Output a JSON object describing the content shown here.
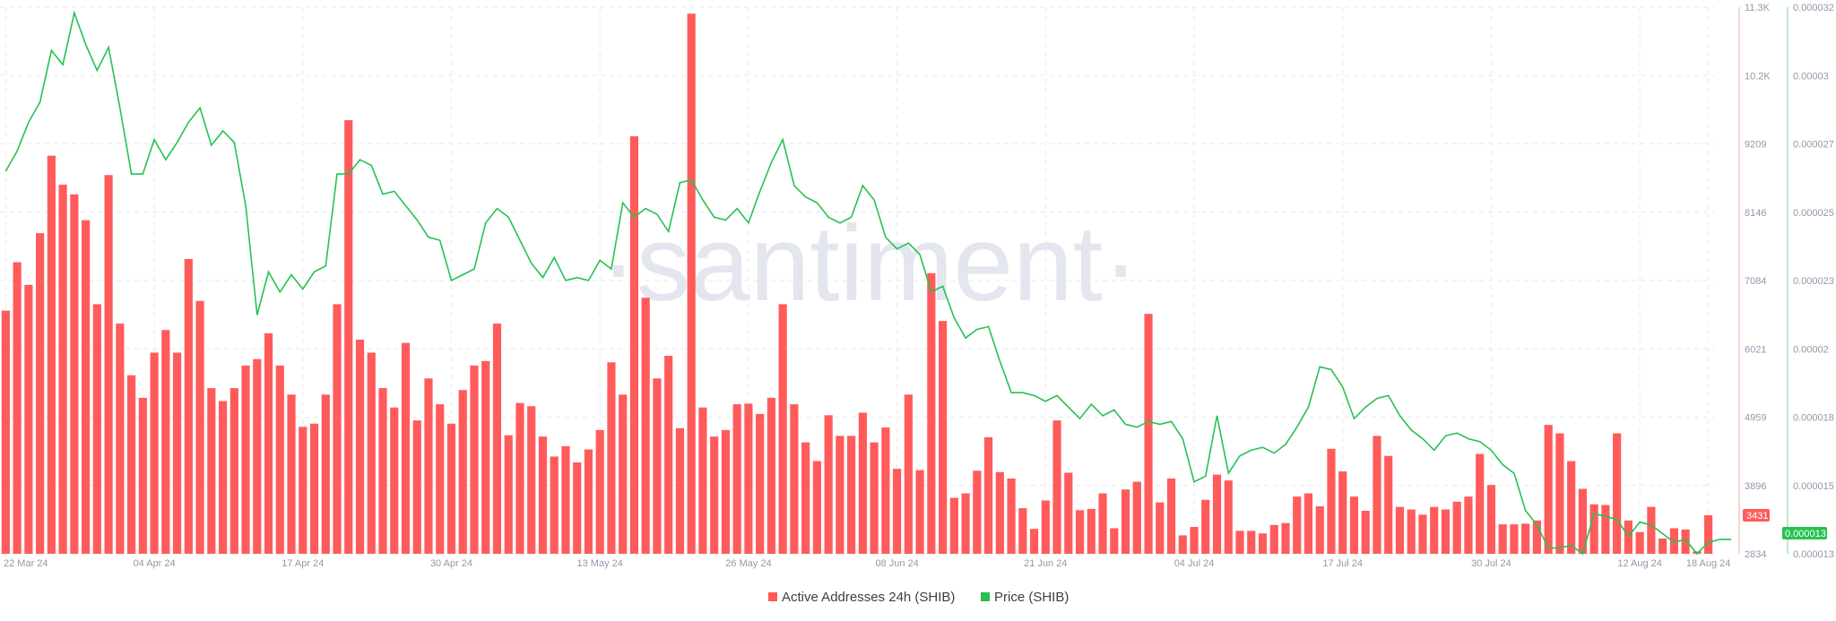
{
  "watermark": "·santiment·",
  "colors": {
    "bars": "#ff5b5b",
    "line": "#26c250",
    "grid": "#e6e9ef",
    "text": "#8f9aa8"
  },
  "chart_data": {
    "type": "bar",
    "x_tick_labels": [
      "22 Mar 24",
      "04 Apr 24",
      "17 Apr 24",
      "30 Apr 24",
      "13 May 24",
      "26 May 24",
      "08 Jun 24",
      "21 Jun 24",
      "04 Jul 24",
      "17 Jul 24",
      "30 Jul 24",
      "12 Aug 24",
      "18 Aug 24"
    ],
    "x_tick_index": [
      0,
      13,
      26,
      39,
      52,
      65,
      78,
      91,
      104,
      117,
      130,
      143,
      149
    ],
    "series": [
      {
        "name": "Active Addresses 24h (SHIB)",
        "axis": "left",
        "ylim": [
          2834,
          11300
        ],
        "values": [
          6600,
          7350,
          7000,
          7800,
          9000,
          8550,
          8400,
          8000,
          6700,
          8700,
          6400,
          5600,
          5250,
          5950,
          6300,
          5950,
          7400,
          6750,
          5400,
          5200,
          5400,
          5750,
          5850,
          6250,
          5750,
          5300,
          4800,
          4850,
          5300,
          6700,
          9550,
          6150,
          5950,
          5400,
          5100,
          6100,
          4900,
          5550,
          5150,
          4850,
          5370,
          5750,
          5820,
          6400,
          4670,
          5170,
          5120,
          4650,
          4340,
          4500,
          4250,
          4450,
          4750,
          5800,
          5300,
          9300,
          6800,
          5550,
          5900,
          4780,
          11200,
          5100,
          4650,
          4750,
          5150,
          5160,
          5000,
          5250,
          6700,
          5150,
          4560,
          4270,
          4980,
          4660,
          4660,
          5020,
          4560,
          4790,
          4150,
          5300,
          4130,
          7180,
          6440,
          3700,
          3770,
          4120,
          4640,
          4100,
          4000,
          3540,
          3220,
          3660,
          4900,
          4090,
          3510,
          3530,
          3770,
          3230,
          3830,
          3950,
          6550,
          3630,
          4000,
          3120,
          3250,
          3670,
          4060,
          3970,
          3190,
          3190,
          3150,
          3280,
          3310,
          3720,
          3770,
          3570,
          4460,
          4110,
          3720,
          3500,
          4660,
          4350,
          3560,
          3520,
          3440,
          3560,
          3520,
          3640,
          3720,
          4380,
          3900,
          3290,
          3290,
          3300,
          3350,
          4830,
          4700,
          4270,
          3840,
          3600,
          3590,
          4700,
          3350,
          3170,
          3560,
          3070,
          3230,
          3210,
          2870,
          3431
        ]
      },
      {
        "name": "Price (SHIB)",
        "axis": "right",
        "ylim": [
          1.3e-05,
          3.2e-05
        ],
        "values": [
          2.63e-05,
          2.7e-05,
          2.8e-05,
          2.87e-05,
          3.05e-05,
          3e-05,
          3.18e-05,
          3.07e-05,
          2.98e-05,
          3.06e-05,
          2.85e-05,
          2.62e-05,
          2.62e-05,
          2.74e-05,
          2.67e-05,
          2.73e-05,
          2.8e-05,
          2.85e-05,
          2.72e-05,
          2.77e-05,
          2.73e-05,
          2.51e-05,
          2.13e-05,
          2.28e-05,
          2.21e-05,
          2.27e-05,
          2.22e-05,
          2.28e-05,
          2.3e-05,
          2.62e-05,
          2.62e-05,
          2.67e-05,
          2.65e-05,
          2.55e-05,
          2.56e-05,
          2.51e-05,
          2.46e-05,
          2.4e-05,
          2.39e-05,
          2.25e-05,
          2.27e-05,
          2.29e-05,
          2.45e-05,
          2.5e-05,
          2.47e-05,
          2.39e-05,
          2.31e-05,
          2.26e-05,
          2.33e-05,
          2.25e-05,
          2.26e-05,
          2.25e-05,
          2.32e-05,
          2.29e-05,
          2.52e-05,
          2.47e-05,
          2.5e-05,
          2.48e-05,
          2.42e-05,
          2.59e-05,
          2.6e-05,
          2.53e-05,
          2.47e-05,
          2.46e-05,
          2.5e-05,
          2.45e-05,
          2.56e-05,
          2.66e-05,
          2.74e-05,
          2.58e-05,
          2.54e-05,
          2.52e-05,
          2.47e-05,
          2.45e-05,
          2.47e-05,
          2.58e-05,
          2.53e-05,
          2.4e-05,
          2.36e-05,
          2.38e-05,
          2.34e-05,
          2.21e-05,
          2.23e-05,
          2.12e-05,
          2.05e-05,
          2.08e-05,
          2.09e-05,
          1.97e-05,
          1.86e-05,
          1.86e-05,
          1.85e-05,
          1.83e-05,
          1.85e-05,
          1.81e-05,
          1.77e-05,
          1.82e-05,
          1.78e-05,
          1.8e-05,
          1.75e-05,
          1.74e-05,
          1.76e-05,
          1.75e-05,
          1.76e-05,
          1.7e-05,
          1.55e-05,
          1.57e-05,
          1.78e-05,
          1.58e-05,
          1.64e-05,
          1.66e-05,
          1.67e-05,
          1.65e-05,
          1.68e-05,
          1.74e-05,
          1.81e-05,
          1.95e-05,
          1.94e-05,
          1.88e-05,
          1.77e-05,
          1.81e-05,
          1.84e-05,
          1.85e-05,
          1.78e-05,
          1.73e-05,
          1.7e-05,
          1.66e-05,
          1.71e-05,
          1.72e-05,
          1.7e-05,
          1.69e-05,
          1.66e-05,
          1.61e-05,
          1.58e-05,
          1.45e-05,
          1.4e-05,
          1.32e-05,
          1.32e-05,
          1.33e-05,
          1.3e-05,
          1.44e-05,
          1.43e-05,
          1.42e-05,
          1.36e-05,
          1.41e-05,
          1.4e-05,
          1.37e-05,
          1.34e-05,
          1.35e-05,
          1.3e-05,
          1.34e-05,
          1.35e-05,
          1.35e-05
        ]
      }
    ],
    "y_left_ticks": [
      "11.3K",
      "10.2K",
      "9209",
      "8146",
      "7084",
      "6021",
      "4959",
      "3896",
      "2834"
    ],
    "y_right_ticks": [
      "0.000032",
      "0.00003",
      "0.000027",
      "0.000025",
      "0.000023",
      "0.00002",
      "0.000018",
      "0.000015",
      "0.000013"
    ],
    "current_badges": {
      "left": "3431",
      "right": "0.000013"
    },
    "legend": {
      "position": "bottom-center",
      "items": [
        "Active Addresses 24h (SHIB)",
        "Price (SHIB)"
      ]
    },
    "grid": true
  }
}
